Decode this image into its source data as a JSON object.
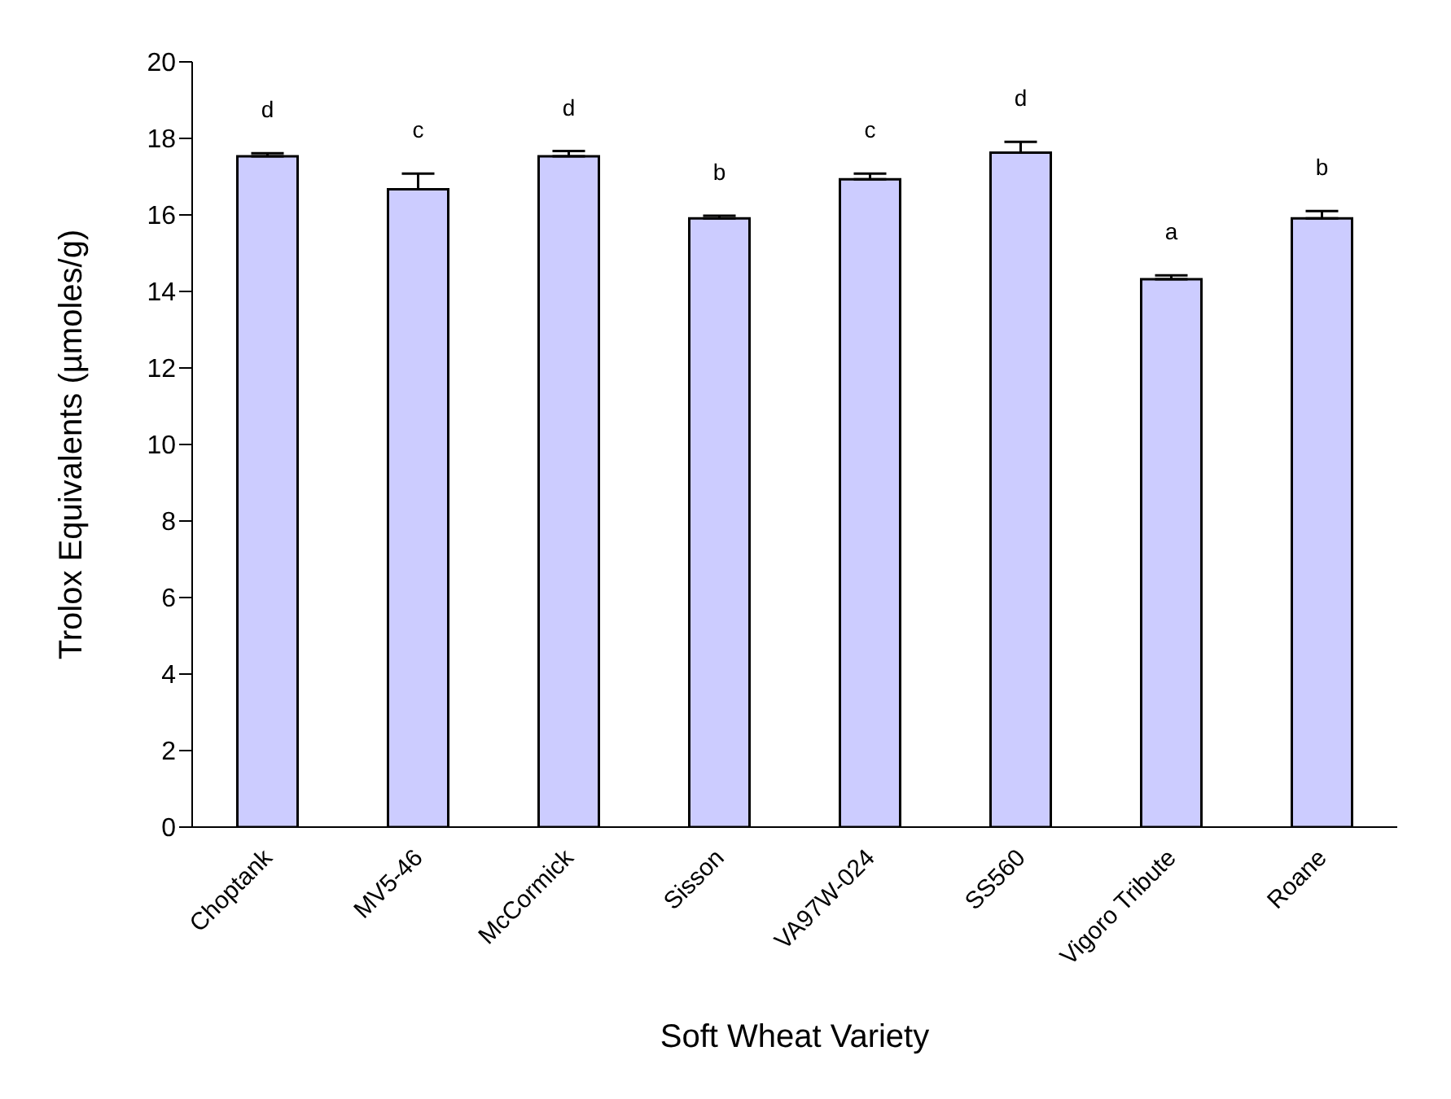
{
  "chart_data": {
    "type": "bar",
    "xlabel": "Soft Wheat Variety",
    "ylabel": "Trolox Equivalents (µmoles/g)",
    "categories": [
      "Choptank",
      "MV5-46",
      "McCormick",
      "Sisson",
      "VA97W-024",
      "SS560",
      "Vigoro Tribute",
      "Roane"
    ],
    "values": [
      17.53,
      16.67,
      17.53,
      15.91,
      16.93,
      17.63,
      14.32,
      15.91
    ],
    "errors": [
      [
        17.53,
        17.61
      ],
      [
        16.67,
        17.08
      ],
      [
        17.53,
        17.67
      ],
      [
        15.91,
        15.98
      ],
      [
        16.93,
        17.08
      ],
      [
        17.63,
        17.91
      ],
      [
        14.32,
        14.42
      ],
      [
        15.91,
        16.1
      ]
    ],
    "color": "#ccccff",
    "ylim": [
      0,
      20
    ],
    "yticks": [
      0,
      2,
      4,
      6,
      8,
      10,
      12,
      14,
      16,
      18,
      20
    ],
    "grid": false,
    "legend": false,
    "annotations": [
      {
        "text": "d",
        "x": "Choptank",
        "y": 17.61
      },
      {
        "text": "c",
        "x": "MV5-46",
        "y": 17.08
      },
      {
        "text": "d",
        "x": "McCormick",
        "y": 17.67
      },
      {
        "text": "b",
        "x": "Sisson",
        "y": 15.98
      },
      {
        "text": "c",
        "x": "VA97W-024",
        "y": 17.08
      },
      {
        "text": "d",
        "x": "SS560",
        "y": 17.91
      },
      {
        "text": "a",
        "x": "Vigoro Tribute",
        "y": 14.42
      },
      {
        "text": "b",
        "x": "Roane",
        "y": 16.1
      }
    ]
  }
}
